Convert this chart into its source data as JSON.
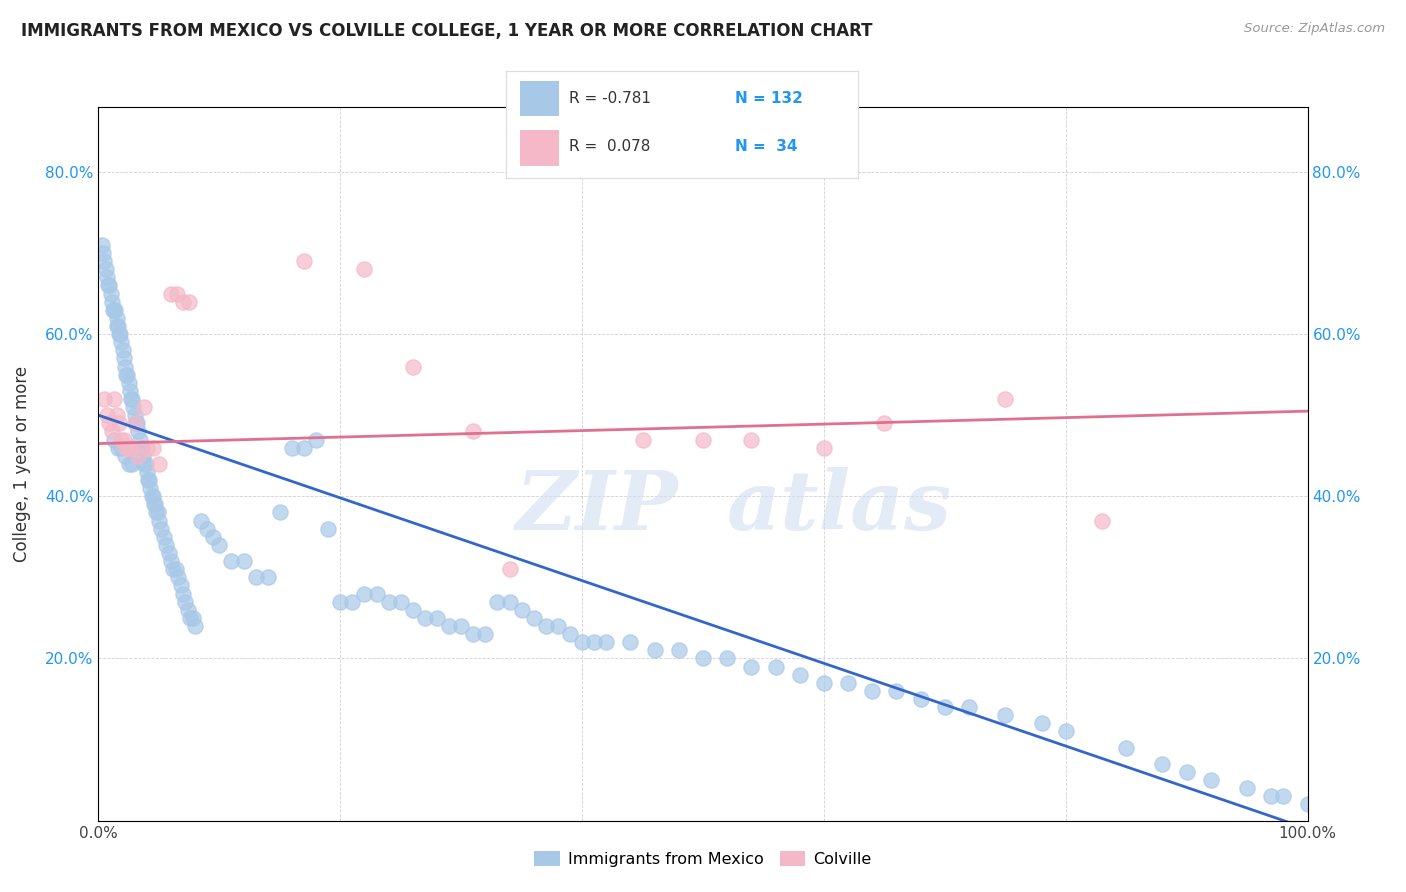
{
  "title": "IMMIGRANTS FROM MEXICO VS COLVILLE COLLEGE, 1 YEAR OR MORE CORRELATION CHART",
  "source": "Source: ZipAtlas.com",
  "ylabel": "College, 1 year or more",
  "legend_label1": "Immigrants from Mexico",
  "legend_label2": "Colville",
  "blue_color": "#a8c8e8",
  "blue_line_color": "#3366cc",
  "pink_color": "#f4b8c8",
  "pink_line_color": "#e07090",
  "xlim": [
    0.0,
    1.0
  ],
  "ylim": [
    0.0,
    0.88
  ],
  "ytick_values": [
    0.0,
    0.2,
    0.4,
    0.6,
    0.8
  ],
  "xtick_values": [
    0.0,
    0.2,
    0.4,
    0.6,
    0.8,
    1.0
  ],
  "blue_trendline_x": [
    0.0,
    1.0
  ],
  "blue_trendline_y": [
    0.5,
    -0.01
  ],
  "pink_trendline_x": [
    0.0,
    1.0
  ],
  "pink_trendline_y": [
    0.465,
    0.505
  ],
  "blue_x": [
    0.003,
    0.004,
    0.005,
    0.006,
    0.007,
    0.008,
    0.009,
    0.01,
    0.011,
    0.012,
    0.013,
    0.014,
    0.015,
    0.015,
    0.016,
    0.017,
    0.018,
    0.019,
    0.02,
    0.021,
    0.022,
    0.023,
    0.024,
    0.025,
    0.026,
    0.027,
    0.028,
    0.029,
    0.03,
    0.031,
    0.032,
    0.033,
    0.034,
    0.035,
    0.036,
    0.037,
    0.038,
    0.039,
    0.04,
    0.041,
    0.042,
    0.043,
    0.044,
    0.045,
    0.046,
    0.047,
    0.048,
    0.049,
    0.05,
    0.052,
    0.054,
    0.056,
    0.058,
    0.06,
    0.062,
    0.064,
    0.066,
    0.068,
    0.07,
    0.072,
    0.074,
    0.076,
    0.078,
    0.08,
    0.085,
    0.09,
    0.095,
    0.1,
    0.11,
    0.12,
    0.13,
    0.14,
    0.15,
    0.16,
    0.17,
    0.18,
    0.19,
    0.2,
    0.21,
    0.22,
    0.23,
    0.24,
    0.25,
    0.26,
    0.27,
    0.28,
    0.29,
    0.3,
    0.31,
    0.32,
    0.33,
    0.34,
    0.35,
    0.36,
    0.37,
    0.38,
    0.39,
    0.4,
    0.41,
    0.42,
    0.44,
    0.46,
    0.48,
    0.5,
    0.52,
    0.54,
    0.56,
    0.58,
    0.6,
    0.62,
    0.64,
    0.66,
    0.68,
    0.7,
    0.72,
    0.75,
    0.78,
    0.8,
    0.85,
    0.88,
    0.9,
    0.92,
    0.95,
    0.97,
    0.98,
    1.0,
    0.013,
    0.016,
    0.019,
    0.022,
    0.025,
    0.028
  ],
  "blue_y": [
    0.71,
    0.7,
    0.69,
    0.68,
    0.67,
    0.66,
    0.66,
    0.65,
    0.64,
    0.63,
    0.63,
    0.63,
    0.62,
    0.61,
    0.61,
    0.6,
    0.6,
    0.59,
    0.58,
    0.57,
    0.56,
    0.55,
    0.55,
    0.54,
    0.53,
    0.52,
    0.52,
    0.51,
    0.5,
    0.49,
    0.49,
    0.48,
    0.47,
    0.46,
    0.46,
    0.45,
    0.44,
    0.44,
    0.43,
    0.42,
    0.42,
    0.41,
    0.4,
    0.4,
    0.39,
    0.39,
    0.38,
    0.38,
    0.37,
    0.36,
    0.35,
    0.34,
    0.33,
    0.32,
    0.31,
    0.31,
    0.3,
    0.29,
    0.28,
    0.27,
    0.26,
    0.25,
    0.25,
    0.24,
    0.37,
    0.36,
    0.35,
    0.34,
    0.32,
    0.32,
    0.3,
    0.3,
    0.38,
    0.46,
    0.46,
    0.47,
    0.36,
    0.27,
    0.27,
    0.28,
    0.28,
    0.27,
    0.27,
    0.26,
    0.25,
    0.25,
    0.24,
    0.24,
    0.23,
    0.23,
    0.27,
    0.27,
    0.26,
    0.25,
    0.24,
    0.24,
    0.23,
    0.22,
    0.22,
    0.22,
    0.22,
    0.21,
    0.21,
    0.2,
    0.2,
    0.19,
    0.19,
    0.18,
    0.17,
    0.17,
    0.16,
    0.16,
    0.15,
    0.14,
    0.14,
    0.13,
    0.12,
    0.11,
    0.09,
    0.07,
    0.06,
    0.05,
    0.04,
    0.03,
    0.03,
    0.02,
    0.47,
    0.46,
    0.46,
    0.45,
    0.44,
    0.44
  ],
  "pink_x": [
    0.005,
    0.007,
    0.009,
    0.011,
    0.013,
    0.015,
    0.017,
    0.019,
    0.021,
    0.023,
    0.025,
    0.028,
    0.03,
    0.033,
    0.038,
    0.04,
    0.045,
    0.05,
    0.06,
    0.065,
    0.07,
    0.075,
    0.17,
    0.22,
    0.26,
    0.31,
    0.34,
    0.45,
    0.5,
    0.54,
    0.6,
    0.65,
    0.75,
    0.83
  ],
  "pink_y": [
    0.52,
    0.5,
    0.49,
    0.48,
    0.52,
    0.5,
    0.49,
    0.47,
    0.47,
    0.46,
    0.46,
    0.46,
    0.49,
    0.45,
    0.51,
    0.46,
    0.46,
    0.44,
    0.65,
    0.65,
    0.64,
    0.64,
    0.69,
    0.68,
    0.56,
    0.48,
    0.31,
    0.47,
    0.47,
    0.47,
    0.46,
    0.49,
    0.52,
    0.37
  ]
}
